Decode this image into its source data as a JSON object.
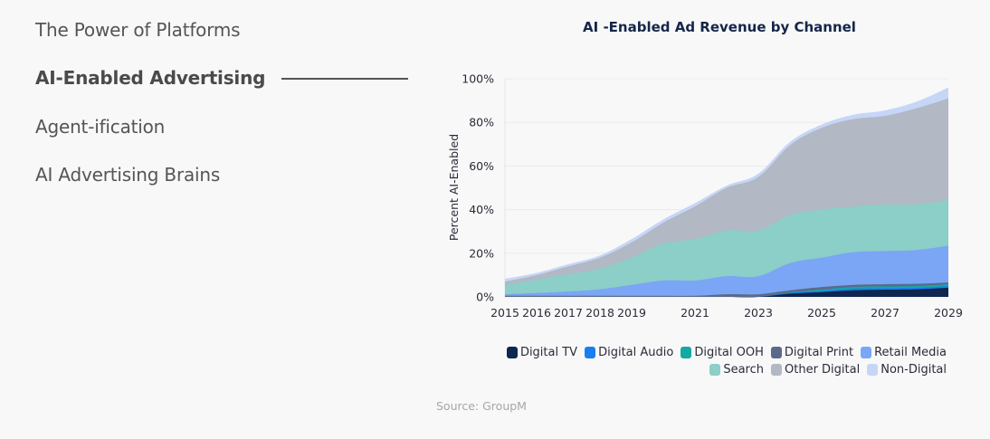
{
  "nav": {
    "items": [
      {
        "label": "The Power of Platforms",
        "active": false
      },
      {
        "label": "AI-Enabled Advertising",
        "active": true
      },
      {
        "label": "Agent-ification",
        "active": false
      },
      {
        "label": "AI Advertising Brains",
        "active": false
      }
    ]
  },
  "source": "Source: GroupM",
  "chart_data": {
    "type": "area",
    "stacked": true,
    "title": "AI -Enabled Ad Revenue by Channel",
    "xlabel": "",
    "ylabel": "Percent AI-Enabled",
    "x": [
      2015,
      2016,
      2017,
      2018,
      2019,
      2020,
      2021,
      2022,
      2023,
      2024,
      2025,
      2026,
      2027,
      2028,
      2029
    ],
    "x_tick_labels": [
      "2015",
      "2016",
      "2017",
      "2018",
      "2019",
      "2021",
      "2023",
      "2025",
      "2027",
      "2029"
    ],
    "y_tick_labels": [
      "0%",
      "20%",
      "40%",
      "60%",
      "80%",
      "100%"
    ],
    "y_ticks": [
      0,
      20,
      40,
      60,
      80,
      100
    ],
    "ylim": [
      0,
      100
    ],
    "xlim": [
      2015,
      2029
    ],
    "grid": "horizontal",
    "legend_position": "bottom-right",
    "series": [
      {
        "name": "Digital TV",
        "color": "#0f2650",
        "values": [
          0,
          0,
          0,
          0,
          0,
          0,
          0,
          0,
          0,
          1.5,
          2.2,
          3,
          3.3,
          3.5,
          4.2
        ]
      },
      {
        "name": "Digital Audio",
        "color": "#1a7ef0",
        "values": [
          0,
          0,
          0,
          0,
          0,
          0,
          0,
          0,
          0,
          0.3,
          0.6,
          0.8,
          0.7,
          0.7,
          0.8
        ]
      },
      {
        "name": "Digital OOH",
        "color": "#13aaa3",
        "values": [
          0,
          0,
          0,
          0,
          0,
          0,
          0,
          0,
          0,
          0.2,
          0.5,
          0.7,
          0.8,
          0.8,
          0.8
        ]
      },
      {
        "name": "Digital Print",
        "color": "#5c6a8a",
        "values": [
          0.5,
          0.5,
          0.5,
          0.5,
          0.5,
          0.5,
          0.5,
          1.2,
          1.2,
          1,
          1.2,
          1,
          1,
          1,
          0.8
        ]
      },
      {
        "name": "Retail Media",
        "color": "#7aa6f5",
        "values": [
          0.7,
          1.3,
          2,
          3,
          5,
          7,
          7,
          8.3,
          8.3,
          12.5,
          13.5,
          15,
          15.2,
          15.5,
          16.9
        ]
      },
      {
        "name": "Search",
        "color": "#8ccec8",
        "values": [
          4.3,
          6.2,
          8,
          9.5,
          12.5,
          17,
          19,
          21,
          21,
          22,
          22,
          21,
          21.3,
          21,
          21
        ]
      },
      {
        "name": "Other Digital",
        "color": "#b2b8c4",
        "values": [
          1.5,
          2,
          3.5,
          5,
          7,
          9.5,
          15,
          19.5,
          24.5,
          32,
          37.5,
          40,
          40.7,
          44,
          46.5
        ]
      },
      {
        "name": "Non-Digital",
        "color": "#c5d6f7",
        "values": [
          1.3,
          1,
          1,
          1,
          1.5,
          1.5,
          1.5,
          1,
          1.5,
          1.5,
          1.5,
          2,
          2.5,
          3,
          5
        ]
      }
    ],
    "legend_rows": [
      [
        "Digital TV",
        "Digital Audio",
        "Digital OOH",
        "Digital Print",
        "Retail Media"
      ],
      [
        "Search",
        "Other Digital",
        "Non-Digital"
      ]
    ]
  }
}
